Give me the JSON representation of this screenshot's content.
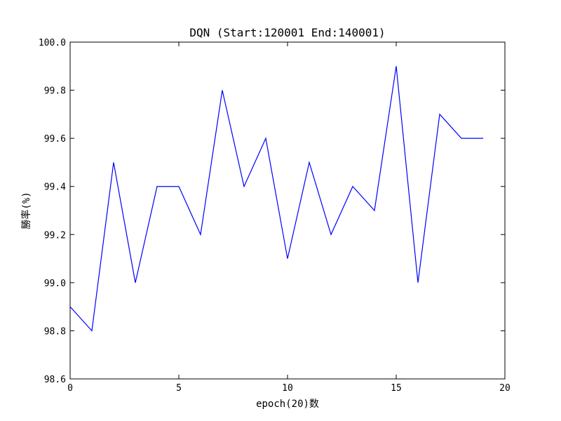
{
  "chart_data": {
    "type": "line",
    "title": "DQN (Start:120001  End:140001)",
    "xlabel": "epoch(20)数",
    "ylabel": "勝率(%)",
    "xlim": [
      0,
      20
    ],
    "ylim": [
      98.6,
      100.0
    ],
    "xticks": [
      "0",
      "5",
      "10",
      "15",
      "20"
    ],
    "yticks": [
      "98.6",
      "98.8",
      "99.0",
      "99.2",
      "99.4",
      "99.6",
      "99.8",
      "100.0"
    ],
    "grid": false,
    "line_color": "#0000ff",
    "series": [
      {
        "x": [
          0,
          1,
          2,
          3,
          4,
          5,
          6,
          7,
          8,
          9,
          10,
          11,
          12,
          13,
          14,
          15,
          16,
          17,
          18,
          19
        ],
        "values": [
          98.9,
          98.8,
          99.5,
          99.0,
          99.4,
          99.4,
          99.2,
          99.8,
          99.4,
          99.6,
          99.1,
          99.5,
          99.2,
          99.4,
          99.3,
          99.9,
          99.0,
          99.7,
          99.6,
          99.6
        ]
      }
    ]
  }
}
